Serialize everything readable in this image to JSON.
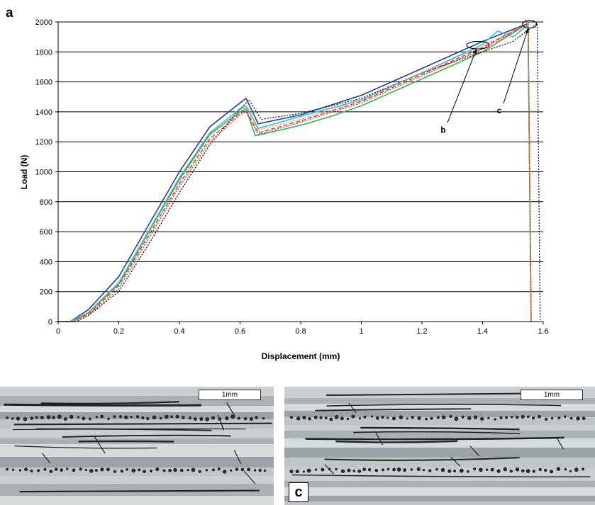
{
  "panel_a_label": "a",
  "chart_data": {
    "type": "line",
    "title": "",
    "xlabel": "Displacement (mm)",
    "ylabel": "Load (N)",
    "xlim": [
      0,
      1.6
    ],
    "ylim": [
      0,
      2000
    ],
    "xticks": [
      0,
      0.2,
      0.4,
      0.6,
      0.8,
      1,
      1.2,
      1.4,
      1.6
    ],
    "xtick_labels": [
      "0",
      "0.2",
      "0.4",
      "0.6",
      "0.8",
      "1",
      "1.2",
      "1.4",
      "1.6"
    ],
    "yticks": [
      0,
      200,
      400,
      600,
      800,
      1000,
      1200,
      1400,
      1600,
      1800,
      2000
    ],
    "ytick_labels": [
      "0",
      "200",
      "400",
      "600",
      "800",
      "1000",
      "1200",
      "1400",
      "1600",
      "1800",
      "2000"
    ],
    "grid": "horizontal",
    "legend": "none",
    "series": [
      {
        "color": "#2e3a9e",
        "dash": "solid",
        "x": [
          0,
          0.04,
          0.1,
          0.2,
          0.3,
          0.4,
          0.5,
          0.6,
          0.62,
          0.66,
          0.8,
          1.0,
          1.2,
          1.4,
          1.55,
          1.555,
          1.56
        ],
        "y": [
          0,
          0,
          80,
          300,
          650,
          1000,
          1300,
          1460,
          1490,
          1320,
          1380,
          1510,
          1690,
          1870,
          1990,
          1000,
          0
        ]
      },
      {
        "color": "#2ec4d9",
        "dash": "solid",
        "x": [
          0,
          0.04,
          0.1,
          0.2,
          0.3,
          0.4,
          0.5,
          0.6,
          0.62,
          0.66,
          0.8,
          1.0,
          1.2,
          1.4,
          1.45,
          1.5,
          1.55,
          1.555,
          1.56
        ],
        "y": [
          0,
          0,
          60,
          260,
          610,
          960,
          1260,
          1420,
          1440,
          1290,
          1370,
          1480,
          1660,
          1850,
          1940,
          1900,
          1980,
          1000,
          0
        ]
      },
      {
        "color": "#3cb04a",
        "dash": "solid",
        "x": [
          0,
          0.05,
          0.1,
          0.2,
          0.3,
          0.4,
          0.5,
          0.6,
          0.62,
          0.65,
          0.8,
          0.9,
          1.0,
          1.2,
          1.4,
          1.55,
          1.555,
          1.56
        ],
        "y": [
          0,
          0,
          60,
          250,
          600,
          950,
          1250,
          1400,
          1420,
          1240,
          1310,
          1370,
          1440,
          1620,
          1800,
          1990,
          1000,
          0
        ]
      },
      {
        "color": "#c0287a",
        "dash": "dashed",
        "x": [
          0,
          0.05,
          0.1,
          0.2,
          0.3,
          0.4,
          0.5,
          0.6,
          0.62,
          0.66,
          0.8,
          1.0,
          1.2,
          1.4,
          1.55,
          1.555,
          1.56
        ],
        "y": [
          0,
          0,
          50,
          240,
          580,
          920,
          1220,
          1390,
          1410,
          1260,
          1340,
          1470,
          1650,
          1830,
          1990,
          1000,
          0
        ]
      },
      {
        "color": "#111111",
        "dash": "dotted",
        "x": [
          0,
          0.06,
          0.1,
          0.2,
          0.3,
          0.4,
          0.5,
          0.6,
          0.63,
          0.67,
          0.8,
          1.0,
          1.2,
          1.4,
          1.5,
          1.58,
          1.585,
          1.59
        ],
        "y": [
          0,
          0,
          40,
          200,
          520,
          860,
          1180,
          1420,
          1480,
          1350,
          1390,
          1490,
          1660,
          1800,
          1870,
          1990,
          1000,
          0
        ]
      },
      {
        "color": "#d9352b",
        "dash": "dotted",
        "x": [
          0,
          0.05,
          0.1,
          0.2,
          0.3,
          0.4,
          0.5,
          0.6,
          0.62,
          0.66,
          0.8,
          1.0,
          1.2,
          1.4,
          1.55,
          1.555,
          1.56
        ],
        "y": [
          0,
          0,
          45,
          220,
          560,
          900,
          1200,
          1380,
          1400,
          1250,
          1330,
          1460,
          1640,
          1820,
          1985,
          1000,
          0
        ]
      },
      {
        "color": "#e39a2d",
        "dash": "dotted",
        "x": [
          0,
          0.05,
          0.1,
          0.2,
          0.3,
          0.4,
          0.5,
          0.6,
          0.62,
          0.66,
          0.8,
          1.0,
          1.2,
          1.4,
          1.55,
          1.555,
          1.56
        ],
        "y": [
          0,
          0,
          55,
          250,
          600,
          940,
          1240,
          1410,
          1430,
          1280,
          1350,
          1480,
          1660,
          1840,
          1990,
          1000,
          0
        ]
      }
    ],
    "annotations": [
      {
        "label": "b",
        "circle_center": [
          1.385,
          1845
        ],
        "circle_radius": [
          0.11,
          115
        ],
        "label_at": [
          1.27,
          1260
        ]
      },
      {
        "label": "c",
        "circle_center": [
          1.555,
          1985
        ],
        "circle_radius": [
          0.07,
          115
        ],
        "label_at": [
          1.455,
          1390
        ]
      }
    ]
  },
  "micrographs": [
    {
      "scale_label": "1mm",
      "letter": ""
    },
    {
      "scale_label": "1mm",
      "letter": "c"
    }
  ]
}
